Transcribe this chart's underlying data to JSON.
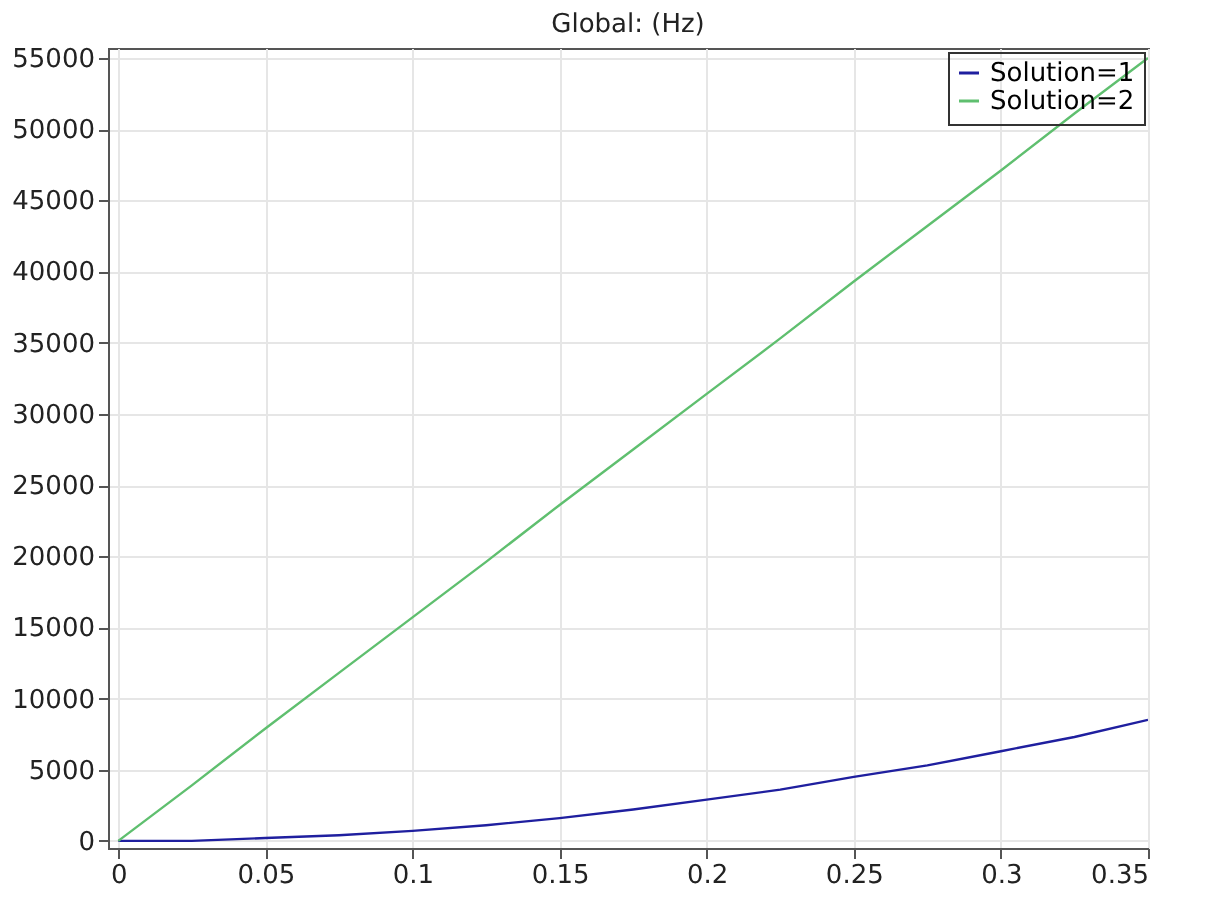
{
  "chart_data": {
    "type": "line",
    "title": "Global:  (Hz)",
    "x": [
      0,
      0.025,
      0.05,
      0.075,
      0.1,
      0.125,
      0.15,
      0.175,
      0.2,
      0.225,
      0.25,
      0.275,
      0.3,
      0.325,
      0.35
    ],
    "series": [
      {
        "name": "Solution=1",
        "color": "#1f1f9f",
        "values": [
          0,
          0,
          200,
          400,
          700,
          1100,
          1600,
          2200,
          2900,
          3600,
          4500,
          5300,
          6300,
          7300,
          8500
        ]
      },
      {
        "name": "Solution=2",
        "color": "#5fbf6f",
        "values": [
          0,
          3900,
          7900,
          11800,
          15700,
          19600,
          23600,
          27500,
          31400,
          35300,
          39300,
          43200,
          47100,
          51100,
          55000
        ]
      }
    ],
    "xlim": [
      -0.0035,
      0.35
    ],
    "xticks": [
      0,
      0.05,
      0.1,
      0.15,
      0.2,
      0.25,
      0.3,
      0.35
    ],
    "ylim": [
      -500,
      55700
    ],
    "yticks": [
      0,
      5000,
      10000,
      15000,
      20000,
      25000,
      30000,
      35000,
      40000,
      45000,
      50000,
      55000
    ],
    "grid": true,
    "legend": "top right",
    "marker": "none",
    "line_style": "solid"
  }
}
